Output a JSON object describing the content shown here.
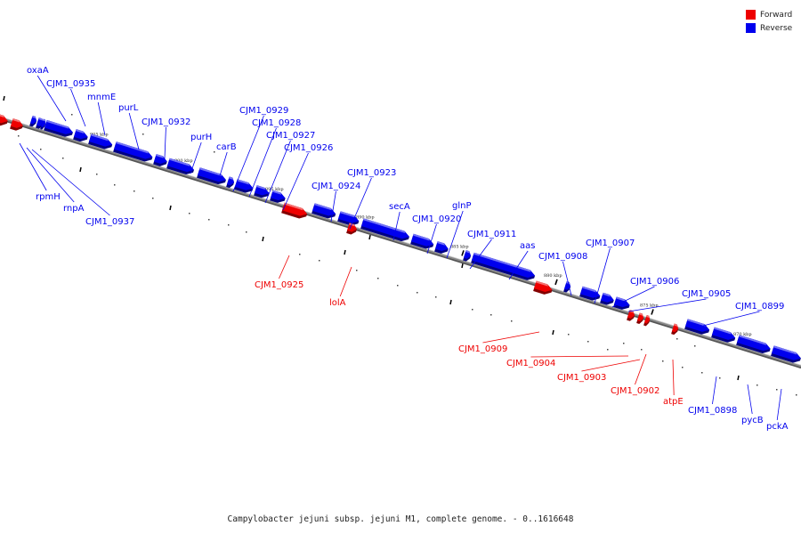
{
  "legend": [
    {
      "label": "Forward",
      "color": "#ee0000"
    },
    {
      "label": "Reverse",
      "color": "#0000ee"
    }
  ],
  "caption": "Campylobacter jejuni subsp. jejuni M1, complete genome. - 0..1616648",
  "colors": {
    "forward": "#ee0000",
    "reverse": "#0000ee",
    "axis": "#888888"
  },
  "diagram": {
    "scale_ticks": [
      "905 kbp",
      "900 kbp",
      "895 kbp",
      "890 kbp",
      "885 kbp",
      "880 kbp",
      "875 kbp",
      "870 kbp"
    ],
    "genes": [
      {
        "label": "oxaA",
        "strand": "reverse"
      },
      {
        "label": "CJM1_0935",
        "strand": "reverse"
      },
      {
        "label": "mnmE",
        "strand": "reverse"
      },
      {
        "label": "purL",
        "strand": "reverse"
      },
      {
        "label": "CJM1_0932",
        "strand": "reverse"
      },
      {
        "label": "purH",
        "strand": "reverse"
      },
      {
        "label": "carB",
        "strand": "reverse"
      },
      {
        "label": "CJM1_0929",
        "strand": "reverse"
      },
      {
        "label": "CJM1_0928",
        "strand": "reverse"
      },
      {
        "label": "CJM1_0927",
        "strand": "reverse"
      },
      {
        "label": "CJM1_0926",
        "strand": "reverse"
      },
      {
        "label": "CJM1_0925",
        "strand": "forward"
      },
      {
        "label": "CJM1_0924",
        "strand": "reverse"
      },
      {
        "label": "CJM1_0923",
        "strand": "reverse"
      },
      {
        "label": "lolA",
        "strand": "forward"
      },
      {
        "label": "secA",
        "strand": "reverse"
      },
      {
        "label": "CJM1_0920",
        "strand": "reverse"
      },
      {
        "label": "glnP",
        "strand": "reverse"
      },
      {
        "label": "CJM1_0911",
        "strand": "reverse"
      },
      {
        "label": "aas",
        "strand": "reverse"
      },
      {
        "label": "CJM1_0909",
        "strand": "forward"
      },
      {
        "label": "CJM1_0908",
        "strand": "reverse"
      },
      {
        "label": "CJM1_0907",
        "strand": "reverse"
      },
      {
        "label": "CJM1_0906",
        "strand": "reverse"
      },
      {
        "label": "CJM1_0905",
        "strand": "reverse"
      },
      {
        "label": "CJM1_0904",
        "strand": "forward"
      },
      {
        "label": "CJM1_0903",
        "strand": "forward"
      },
      {
        "label": "CJM1_0902",
        "strand": "forward"
      },
      {
        "label": "atpE",
        "strand": "forward"
      },
      {
        "label": "CJM1_0899",
        "strand": "reverse"
      },
      {
        "label": "CJM1_0898",
        "strand": "reverse"
      },
      {
        "label": "pycB",
        "strand": "reverse"
      },
      {
        "label": "pckA",
        "strand": "reverse"
      },
      {
        "label": "rpmH",
        "strand": "reverse"
      },
      {
        "label": "rnpA",
        "strand": "reverse"
      },
      {
        "label": "CJM1_0937",
        "strand": "reverse"
      }
    ]
  }
}
